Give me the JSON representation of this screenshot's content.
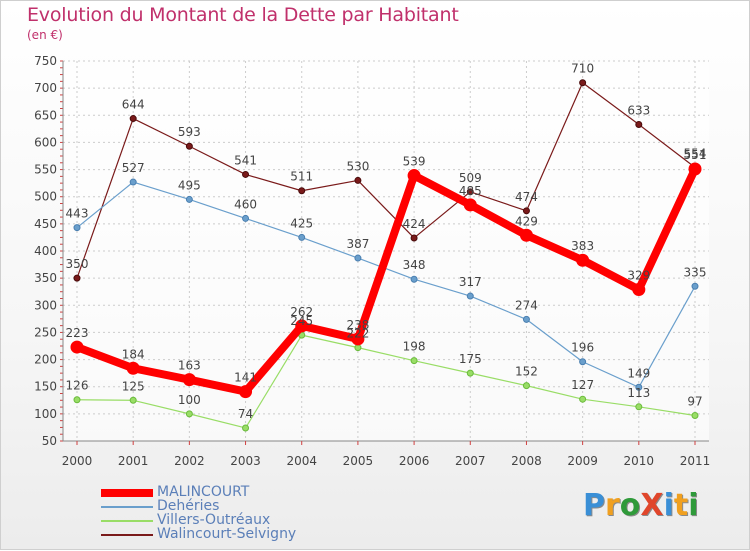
{
  "header": {
    "title": "Evolution du Montant de la Dette par Habitant",
    "subtitle": "(en €)"
  },
  "logo": {
    "text": "ProXiti",
    "letters": [
      {
        "ch": "P",
        "color": "#3a8fd6"
      },
      {
        "ch": "r",
        "color": "#f0a020"
      },
      {
        "ch": "o",
        "color": "#2f9a3a"
      },
      {
        "ch": "X",
        "color": "#e0462b"
      },
      {
        "ch": "i",
        "color": "#3a8fd6"
      },
      {
        "ch": "t",
        "color": "#f0a020"
      },
      {
        "ch": "i",
        "color": "#2f9a3a"
      }
    ]
  },
  "chart_data": {
    "type": "line",
    "title": "Evolution du Montant de la Dette par Habitant",
    "subtitle": "(en €)",
    "xlabel": "",
    "ylabel": "",
    "x": [
      "2000",
      "2001",
      "2002",
      "2003",
      "2004",
      "2005",
      "2006",
      "2007",
      "2008",
      "2009",
      "2010",
      "2011"
    ],
    "ylim": [
      50,
      750
    ],
    "yticks": [
      50,
      100,
      150,
      200,
      250,
      300,
      350,
      400,
      450,
      500,
      550,
      600,
      650,
      700,
      750
    ],
    "grid": true,
    "legend_position": "bottom-left",
    "series": [
      {
        "name": "MALINCOURT",
        "color": "#ff0000",
        "values": [
          223,
          184,
          163,
          141,
          262,
          238,
          539,
          485,
          429,
          383,
          329,
          551
        ]
      },
      {
        "name": "Dehéries",
        "color": "#6a9fcc",
        "values": [
          443,
          527,
          495,
          460,
          425,
          387,
          348,
          317,
          274,
          196,
          149,
          335
        ]
      },
      {
        "name": "Villers-Outréaux",
        "color": "#99dd66",
        "values": [
          126,
          125,
          100,
          74,
          245,
          222,
          198,
          175,
          152,
          127,
          113,
          97
        ]
      },
      {
        "name": "Walincourt-Selvigny",
        "color": "#7a1a1a",
        "values": [
          350,
          644,
          593,
          541,
          511,
          530,
          424,
          509,
          474,
          710,
          633,
          554
        ]
      }
    ]
  },
  "labels": {
    "MALINCOURT": [
      "223",
      "184",
      "163",
      "141",
      "262",
      "238",
      "539",
      "485",
      "429",
      "383",
      "329",
      "551"
    ],
    "Dehéries": [
      "443",
      "527",
      "495",
      "460",
      "425",
      "387",
      "348",
      "317",
      "274",
      "196",
      "149",
      "335"
    ],
    "Villers-Outréaux": [
      "126",
      "125",
      "100",
      "74",
      "245",
      "222",
      "198",
      "175",
      "152",
      "127",
      "113",
      "97"
    ],
    "Walincourt-Selvigny": [
      "350",
      "644",
      "593",
      "541",
      "511",
      "530",
      "424",
      "509",
      "474",
      "710",
      "633",
      "554"
    ]
  }
}
